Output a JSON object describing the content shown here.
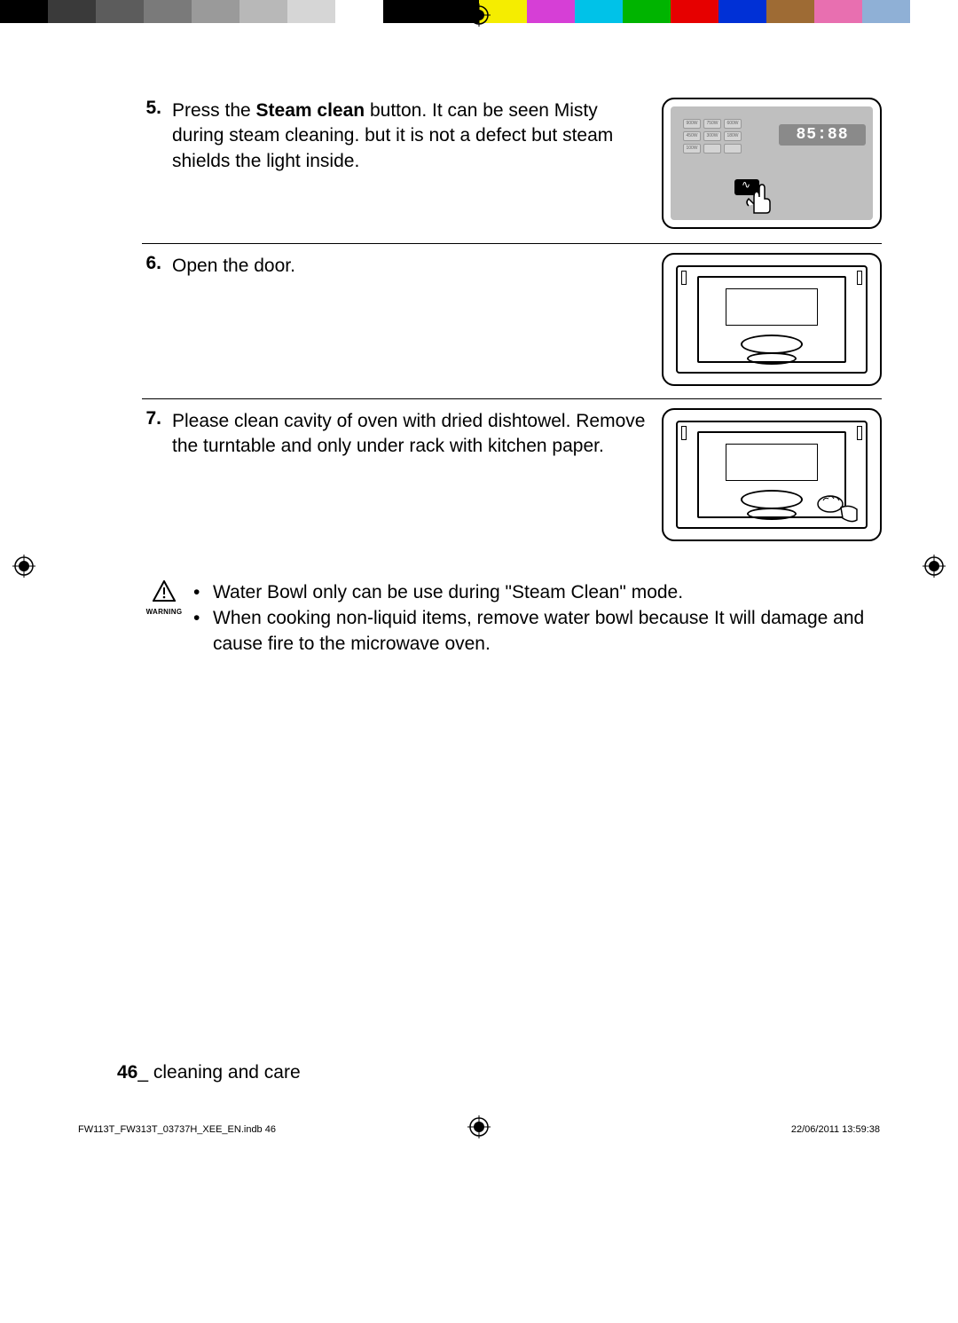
{
  "color_bar": [
    "#000000",
    "#3a3a3a",
    "#5c5c5c",
    "#7a7a7a",
    "#9a9a9a",
    "#b8b8b8",
    "#d6d6d6",
    "#ffffff",
    "#000000",
    "#000000",
    "#f5ed00",
    "#d63fd6",
    "#00c2e8",
    "#00b400",
    "#e60000",
    "#0030d6",
    "#9e6b34",
    "#e86fb0",
    "#8fb0d6",
    "#ffffff"
  ],
  "steps": [
    {
      "num": "5.",
      "text_parts": [
        "Press the ",
        "Steam clean",
        " button. It can be seen Misty during steam cleaning. but it is not a defect but steam shields the light inside."
      ],
      "bold_index": 1,
      "figure": "panel",
      "display": "85:88"
    },
    {
      "num": "6.",
      "text_parts": [
        "Open the door.",
        "",
        ""
      ],
      "bold_index": -1,
      "figure": "oven_open"
    },
    {
      "num": "7.",
      "text_parts": [
        "Please clean cavity of oven with dried dishtowel. Remove the turntable and only under rack with kitchen paper.",
        "",
        ""
      ],
      "bold_index": -1,
      "figure": "oven_clean"
    }
  ],
  "panel_btn_labels": [
    "900W",
    "750W",
    "600W",
    "450W",
    "300W",
    "180W",
    "100W",
    "",
    ""
  ],
  "warning": {
    "label": "WARNING",
    "bullets": [
      "Water Bowl only can be use during \"Steam Clean\" mode.",
      "When cooking non-liquid items, remove water bowl because It will damage and cause fire to the microwave oven."
    ]
  },
  "footer": {
    "page_num": "46",
    "section": "_ cleaning and care"
  },
  "meta": {
    "left": "FW113T_FW313T_03737H_XEE_EN.indb   46",
    "right": "22/06/2011   13:59:38"
  }
}
